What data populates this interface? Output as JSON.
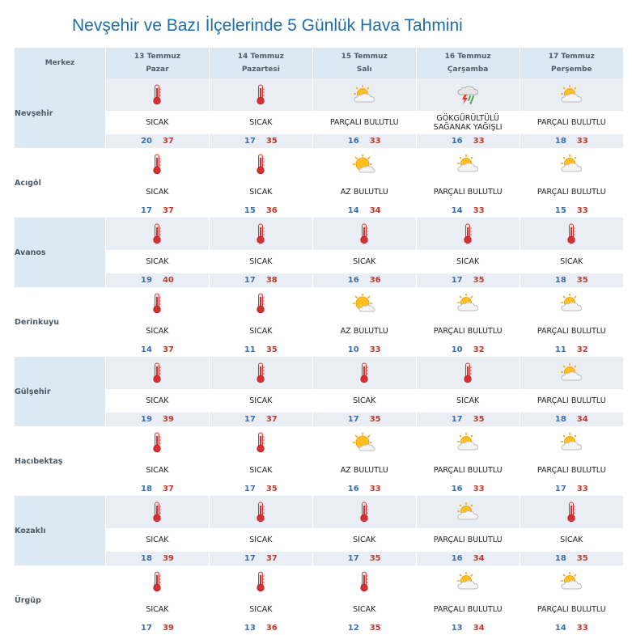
{
  "title": "Nevşehir ve Bazı İlçelerinde 5 Günlük Hava Tahmini",
  "header": {
    "first": "Merkez",
    "days": [
      {
        "date": "13 Temmuz",
        "day": "Pazar"
      },
      {
        "date": "14 Temmuz",
        "day": "Pazartesi"
      },
      {
        "date": "15 Temmuz",
        "day": "Salı"
      },
      {
        "date": "16 Temmuz",
        "day": "Çarşamba"
      },
      {
        "date": "17 Temmuz",
        "day": "Perşembe"
      }
    ]
  },
  "colors": {
    "header_bg": "#dde9f2",
    "title": "#1f6ea8",
    "low": "#3a6fb0",
    "high": "#c0392b"
  },
  "rows": [
    {
      "name": "Nevşehir",
      "cells": [
        {
          "icon": "thermometer",
          "desc": "SICAK",
          "lo": "20",
          "hi": "37"
        },
        {
          "icon": "thermometer",
          "desc": "SICAK",
          "lo": "17",
          "hi": "35"
        },
        {
          "icon": "partly-cloudy",
          "desc": "PARÇALI BULUTLU",
          "lo": "16",
          "hi": "33"
        },
        {
          "icon": "thunderstorm",
          "desc": "GÖKGÜRÜLTÜLÜ SAĞANAK YAĞIŞLI",
          "lo": "16",
          "hi": "33"
        },
        {
          "icon": "partly-cloudy",
          "desc": "PARÇALI BULUTLU",
          "lo": "18",
          "hi": "33"
        }
      ]
    },
    {
      "name": "Acıgöl",
      "cells": [
        {
          "icon": "thermometer",
          "desc": "SICAK",
          "lo": "17",
          "hi": "37"
        },
        {
          "icon": "thermometer",
          "desc": "SICAK",
          "lo": "15",
          "hi": "36"
        },
        {
          "icon": "mostly-sunny",
          "desc": "AZ BULUTLU",
          "lo": "14",
          "hi": "34"
        },
        {
          "icon": "partly-cloudy",
          "desc": "PARÇALI BULUTLU",
          "lo": "14",
          "hi": "33"
        },
        {
          "icon": "partly-cloudy",
          "desc": "PARÇALI BULUTLU",
          "lo": "15",
          "hi": "33"
        }
      ]
    },
    {
      "name": "Avanos",
      "cells": [
        {
          "icon": "thermometer",
          "desc": "SICAK",
          "lo": "19",
          "hi": "40"
        },
        {
          "icon": "thermometer",
          "desc": "SICAK",
          "lo": "17",
          "hi": "38"
        },
        {
          "icon": "thermometer",
          "desc": "SICAK",
          "lo": "16",
          "hi": "36"
        },
        {
          "icon": "thermometer",
          "desc": "SICAK",
          "lo": "17",
          "hi": "35"
        },
        {
          "icon": "thermometer",
          "desc": "SICAK",
          "lo": "18",
          "hi": "35"
        }
      ]
    },
    {
      "name": "Derinkuyu",
      "cells": [
        {
          "icon": "thermometer",
          "desc": "SICAK",
          "lo": "14",
          "hi": "37"
        },
        {
          "icon": "thermometer",
          "desc": "SICAK",
          "lo": "11",
          "hi": "35"
        },
        {
          "icon": "mostly-sunny",
          "desc": "AZ BULUTLU",
          "lo": "10",
          "hi": "33"
        },
        {
          "icon": "partly-cloudy",
          "desc": "PARÇALI BULUTLU",
          "lo": "10",
          "hi": "32"
        },
        {
          "icon": "partly-cloudy",
          "desc": "PARÇALI BULUTLU",
          "lo": "11",
          "hi": "32"
        }
      ]
    },
    {
      "name": "Gülşehir",
      "cells": [
        {
          "icon": "thermometer",
          "desc": "SICAK",
          "lo": "19",
          "hi": "39"
        },
        {
          "icon": "thermometer",
          "desc": "SICAK",
          "lo": "17",
          "hi": "37"
        },
        {
          "icon": "thermometer",
          "desc": "SICAK",
          "lo": "17",
          "hi": "35"
        },
        {
          "icon": "thermometer",
          "desc": "SICAK",
          "lo": "17",
          "hi": "35"
        },
        {
          "icon": "partly-cloudy",
          "desc": "PARÇALI BULUTLU",
          "lo": "18",
          "hi": "34"
        }
      ]
    },
    {
      "name": "Hacıbektaş",
      "cells": [
        {
          "icon": "thermometer",
          "desc": "SICAK",
          "lo": "18",
          "hi": "37"
        },
        {
          "icon": "thermometer",
          "desc": "SICAK",
          "lo": "17",
          "hi": "35"
        },
        {
          "icon": "mostly-sunny",
          "desc": "AZ BULUTLU",
          "lo": "16",
          "hi": "33"
        },
        {
          "icon": "partly-cloudy",
          "desc": "PARÇALI BULUTLU",
          "lo": "16",
          "hi": "33"
        },
        {
          "icon": "partly-cloudy",
          "desc": "PARÇALI BULUTLU",
          "lo": "17",
          "hi": "33"
        }
      ]
    },
    {
      "name": "Kozaklı",
      "cells": [
        {
          "icon": "thermometer",
          "desc": "SICAK",
          "lo": "18",
          "hi": "39"
        },
        {
          "icon": "thermometer",
          "desc": "SICAK",
          "lo": "17",
          "hi": "37"
        },
        {
          "icon": "thermometer",
          "desc": "SICAK",
          "lo": "17",
          "hi": "35"
        },
        {
          "icon": "partly-cloudy",
          "desc": "PARÇALI BULUTLU",
          "lo": "16",
          "hi": "34"
        },
        {
          "icon": "thermometer",
          "desc": "SICAK",
          "lo": "18",
          "hi": "35"
        }
      ]
    },
    {
      "name": "Ürgüp",
      "cells": [
        {
          "icon": "thermometer",
          "desc": "SICAK",
          "lo": "17",
          "hi": "39"
        },
        {
          "icon": "thermometer",
          "desc": "SICAK",
          "lo": "13",
          "hi": "36"
        },
        {
          "icon": "thermometer",
          "desc": "SICAK",
          "lo": "12",
          "hi": "35"
        },
        {
          "icon": "partly-cloudy",
          "desc": "PARÇALI BULUTLU",
          "lo": "13",
          "hi": "34"
        },
        {
          "icon": "partly-cloudy",
          "desc": "PARÇALI BULUTLU",
          "lo": "14",
          "hi": "33"
        }
      ]
    }
  ]
}
